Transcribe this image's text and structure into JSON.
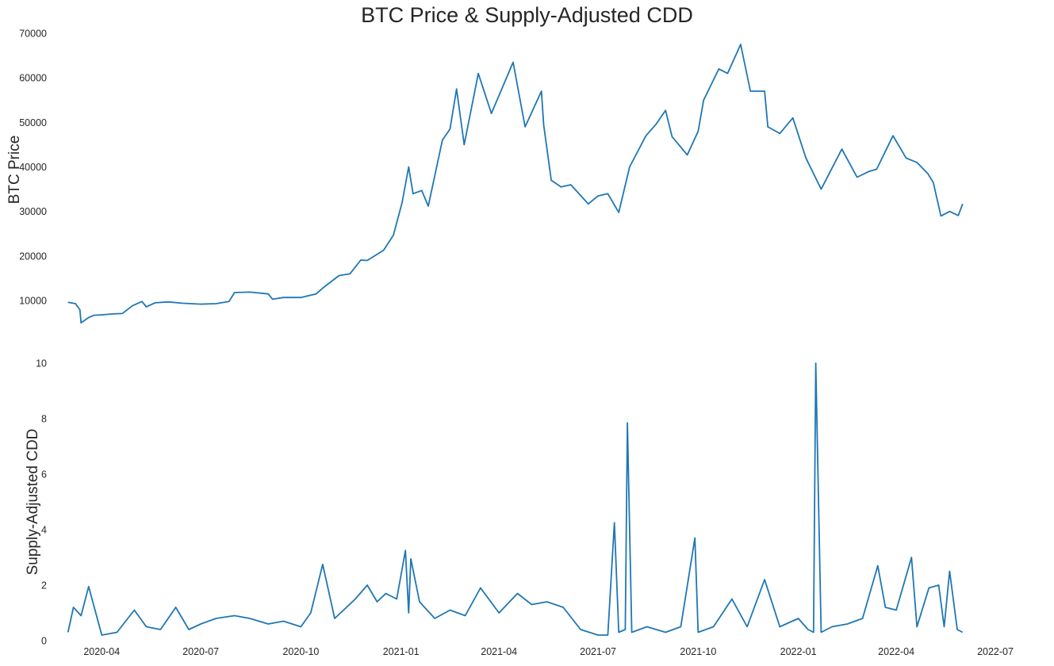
{
  "chart_data": {
    "title": "BTC Price & Supply-Adjusted CDD",
    "type": "line",
    "grid": false,
    "line_color": "#1f77b4",
    "x_ticks": [
      "2020-04",
      "2020-07",
      "2020-10",
      "2021-01",
      "2021-04",
      "2021-07",
      "2021-10",
      "2022-01",
      "2022-04",
      "2022-07"
    ],
    "x_range": [
      "2020-02-20",
      "2022-07-01"
    ],
    "panels": [
      {
        "ylabel": "BTC  Price",
        "ylim": [
          4500,
          70000
        ],
        "yticks": [
          "10000",
          "20000",
          "30000",
          "40000",
          "50000",
          "60000",
          "70000"
        ],
        "series": [
          {
            "x": [
              "2020-03-01",
              "2020-03-08",
              "2020-03-12",
              "2020-03-13",
              "2020-03-20",
              "2020-03-25",
              "2020-04-01",
              "2020-04-10",
              "2020-04-20",
              "2020-04-29",
              "2020-05-08",
              "2020-05-12",
              "2020-05-20",
              "2020-06-01",
              "2020-06-15",
              "2020-07-01",
              "2020-07-15",
              "2020-07-27",
              "2020-08-01",
              "2020-08-15",
              "2020-09-01",
              "2020-09-05",
              "2020-09-15",
              "2020-10-01",
              "2020-10-15",
              "2020-10-21",
              "2020-11-05",
              "2020-11-15",
              "2020-11-25",
              "2020-12-01",
              "2020-12-16",
              "2020-12-25",
              "2021-01-02",
              "2021-01-08",
              "2021-01-12",
              "2021-01-20",
              "2021-01-26",
              "2021-02-08",
              "2021-02-15",
              "2021-02-21",
              "2021-02-28",
              "2021-03-13",
              "2021-03-25",
              "2021-04-14",
              "2021-04-25",
              "2021-05-10",
              "2021-05-12",
              "2021-05-19",
              "2021-05-28",
              "2021-06-06",
              "2021-06-22",
              "2021-07-01",
              "2021-07-10",
              "2021-07-20",
              "2021-07-30",
              "2021-08-14",
              "2021-08-23",
              "2021-09-01",
              "2021-09-07",
              "2021-09-21",
              "2021-10-01",
              "2021-10-06",
              "2021-10-20",
              "2021-10-28",
              "2021-11-09",
              "2021-11-18",
              "2021-12-01",
              "2021-12-04",
              "2021-12-15",
              "2021-12-27",
              "2022-01-08",
              "2022-01-22",
              "2022-02-10",
              "2022-02-24",
              "2022-03-07",
              "2022-03-14",
              "2022-03-29",
              "2022-04-10",
              "2022-04-20",
              "2022-04-30",
              "2022-05-05",
              "2022-05-12",
              "2022-05-20",
              "2022-05-28",
              "2022-06-01"
            ],
            "y": [
              9600,
              9300,
              7900,
              5000,
              6200,
              6700,
              6800,
              7000,
              7100,
              8800,
              9800,
              8600,
              9500,
              9700,
              9400,
              9200,
              9300,
              9800,
              11800,
              11900,
              11500,
              10300,
              10700,
              10700,
              11500,
              12800,
              15600,
              16000,
              19100,
              19000,
              21300,
              24700,
              32000,
              40000,
              34000,
              34700,
              31200,
              46000,
              48500,
              57500,
              45000,
              61000,
              52000,
              63500,
              49000,
              57000,
              49500,
              37000,
              35500,
              36000,
              31700,
              33500,
              34000,
              29800,
              40000,
              47000,
              49500,
              52700,
              46800,
              42700,
              48000,
              55000,
              62000,
              61000,
              67500,
              57000,
              57000,
              49000,
              47500,
              51000,
              42000,
              35000,
              44000,
              37700,
              39000,
              39500,
              47000,
              42000,
              41000,
              38500,
              36500,
              29000,
              30000,
              29100,
              31700
            ]
          }
        ]
      },
      {
        "ylabel": "Supply-Adjusted CDD",
        "ylim": [
          0,
          10
        ],
        "yticks": [
          "0",
          "2",
          "4",
          "6",
          "8",
          "10"
        ],
        "series": [
          {
            "x": [
              "2020-03-01",
              "2020-03-06",
              "2020-03-13",
              "2020-03-20",
              "2020-04-01",
              "2020-04-15",
              "2020-05-01",
              "2020-05-12",
              "2020-05-25",
              "2020-06-08",
              "2020-06-20",
              "2020-07-01",
              "2020-07-15",
              "2020-08-01",
              "2020-08-15",
              "2020-09-01",
              "2020-09-15",
              "2020-10-01",
              "2020-10-10",
              "2020-10-21",
              "2020-11-01",
              "2020-11-20",
              "2020-12-01",
              "2020-12-10",
              "2020-12-18",
              "2020-12-28",
              "2021-01-05",
              "2021-01-08",
              "2021-01-10",
              "2021-01-18",
              "2021-02-01",
              "2021-02-15",
              "2021-03-01",
              "2021-03-15",
              "2021-04-01",
              "2021-04-18",
              "2021-05-01",
              "2021-05-15",
              "2021-05-30",
              "2021-06-15",
              "2021-07-01",
              "2021-07-10",
              "2021-07-16",
              "2021-07-20",
              "2021-07-26",
              "2021-07-28",
              "2021-08-01",
              "2021-08-15",
              "2021-09-01",
              "2021-09-15",
              "2021-09-28",
              "2021-10-01",
              "2021-10-15",
              "2021-11-01",
              "2021-11-15",
              "2021-12-01",
              "2021-12-15",
              "2022-01-01",
              "2022-01-10",
              "2022-01-15",
              "2022-01-17",
              "2022-01-22",
              "2022-02-01",
              "2022-02-15",
              "2022-03-01",
              "2022-03-15",
              "2022-03-22",
              "2022-04-01",
              "2022-04-15",
              "2022-04-20",
              "2022-05-01",
              "2022-05-10",
              "2022-05-15",
              "2022-05-20",
              "2022-05-27",
              "2022-06-01"
            ],
            "y": [
              0.3,
              1.2,
              0.9,
              1.95,
              0.2,
              0.3,
              1.1,
              0.5,
              0.4,
              1.2,
              0.4,
              0.6,
              0.8,
              0.9,
              0.8,
              0.6,
              0.7,
              0.5,
              1.0,
              2.75,
              0.8,
              1.5,
              2.0,
              1.4,
              1.7,
              1.5,
              3.25,
              1.0,
              2.95,
              1.4,
              0.8,
              1.1,
              0.9,
              1.9,
              1.0,
              1.7,
              1.3,
              1.4,
              1.2,
              0.4,
              0.2,
              0.2,
              4.25,
              0.3,
              0.4,
              7.85,
              0.3,
              0.5,
              0.3,
              0.5,
              3.7,
              0.3,
              0.5,
              1.5,
              0.5,
              2.2,
              0.5,
              0.8,
              0.4,
              0.3,
              10.0,
              0.3,
              0.5,
              0.6,
              0.8,
              2.7,
              1.2,
              1.1,
              3.0,
              0.5,
              1.9,
              2.0,
              0.5,
              2.5,
              0.4,
              0.3
            ]
          }
        ]
      }
    ]
  }
}
